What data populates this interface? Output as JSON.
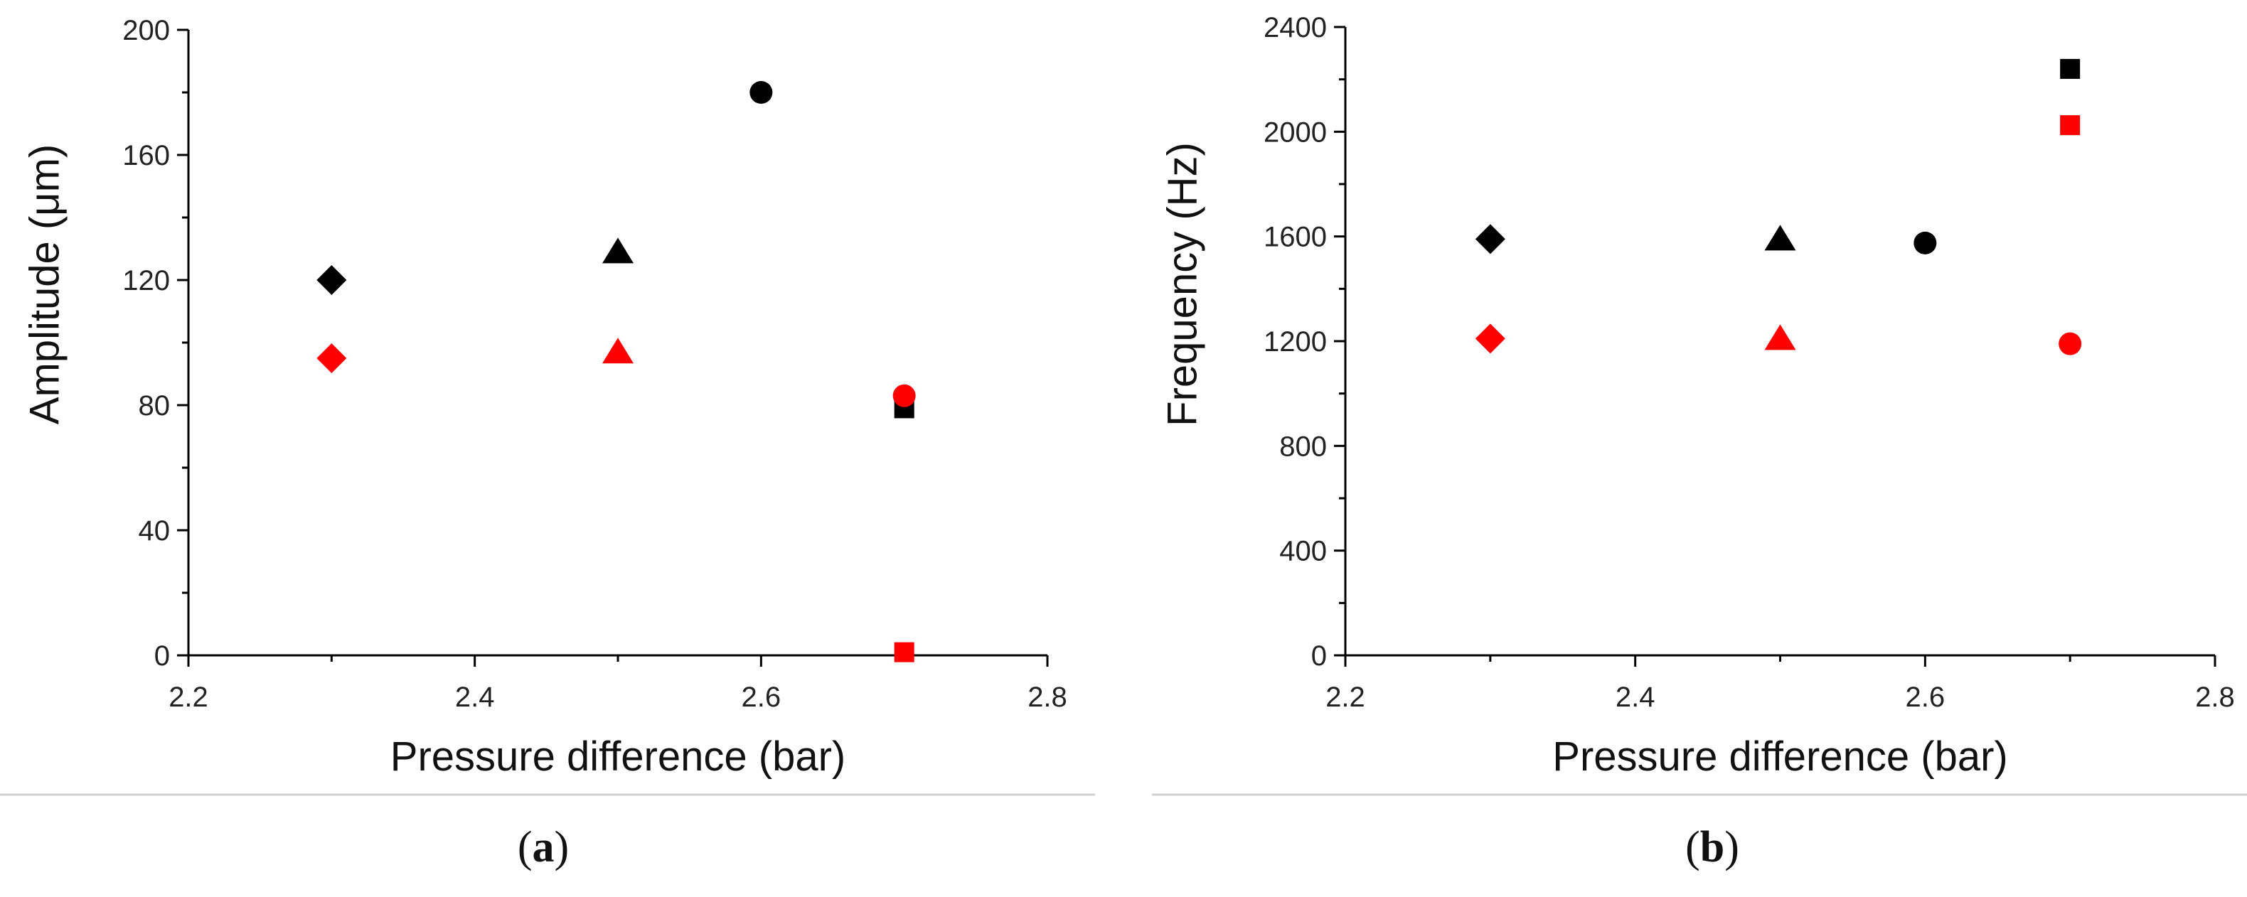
{
  "chart_data": [
    {
      "type": "scatter",
      "caption_letter": "a",
      "xlabel": "Pressure difference (bar)",
      "ylabel": "Amplitude (μm)",
      "xlim": [
        2.2,
        2.8
      ],
      "ylim": [
        0,
        200
      ],
      "xticks": [
        2.2,
        2.4,
        2.6,
        2.8
      ],
      "yticks": [
        0,
        40,
        80,
        120,
        160,
        200
      ],
      "xtick_labels": [
        "2.2",
        "2.4",
        "2.6",
        "2.8"
      ],
      "ytick_labels": [
        "0",
        "40",
        "80",
        "120",
        "160",
        "200"
      ],
      "grid": false,
      "legend": "none",
      "points": [
        {
          "x": 2.3,
          "y": 120,
          "marker": "diamond",
          "color": "#000000"
        },
        {
          "x": 2.3,
          "y": 95,
          "marker": "diamond",
          "color": "#ff0000"
        },
        {
          "x": 2.5,
          "y": 129,
          "marker": "triangle",
          "color": "#000000"
        },
        {
          "x": 2.5,
          "y": 97,
          "marker": "triangle",
          "color": "#ff0000"
        },
        {
          "x": 2.6,
          "y": 180,
          "marker": "circle",
          "color": "#000000"
        },
        {
          "x": 2.7,
          "y": 79,
          "marker": "square",
          "color": "#000000"
        },
        {
          "x": 2.7,
          "y": 83,
          "marker": "circle",
          "color": "#ff0000"
        },
        {
          "x": 2.7,
          "y": 1,
          "marker": "square",
          "color": "#ff0000"
        }
      ]
    },
    {
      "type": "scatter",
      "caption_letter": "b",
      "xlabel": "Pressure difference (bar)",
      "ylabel": "Frequency (Hz)",
      "xlim": [
        2.2,
        2.8
      ],
      "ylim": [
        0,
        2400
      ],
      "xticks": [
        2.2,
        2.4,
        2.6,
        2.8
      ],
      "yticks": [
        0,
        400,
        800,
        1200,
        1600,
        2000,
        2400
      ],
      "xtick_labels": [
        "2.2",
        "2.4",
        "2.6",
        "2.8"
      ],
      "ytick_labels": [
        "0",
        "400",
        "800",
        "1200",
        "1600",
        "2000",
        "2400"
      ],
      "grid": false,
      "legend": "none",
      "points": [
        {
          "x": 2.3,
          "y": 1590,
          "marker": "diamond",
          "color": "#000000"
        },
        {
          "x": 2.3,
          "y": 1210,
          "marker": "diamond",
          "color": "#ff0000"
        },
        {
          "x": 2.5,
          "y": 1590,
          "marker": "triangle",
          "color": "#000000"
        },
        {
          "x": 2.5,
          "y": 1210,
          "marker": "triangle",
          "color": "#ff0000"
        },
        {
          "x": 2.6,
          "y": 1575,
          "marker": "circle",
          "color": "#000000"
        },
        {
          "x": 2.7,
          "y": 2240,
          "marker": "square",
          "color": "#000000"
        },
        {
          "x": 2.7,
          "y": 2025,
          "marker": "square",
          "color": "#ff0000"
        },
        {
          "x": 2.7,
          "y": 1190,
          "marker": "circle",
          "color": "#ff0000"
        }
      ]
    }
  ]
}
